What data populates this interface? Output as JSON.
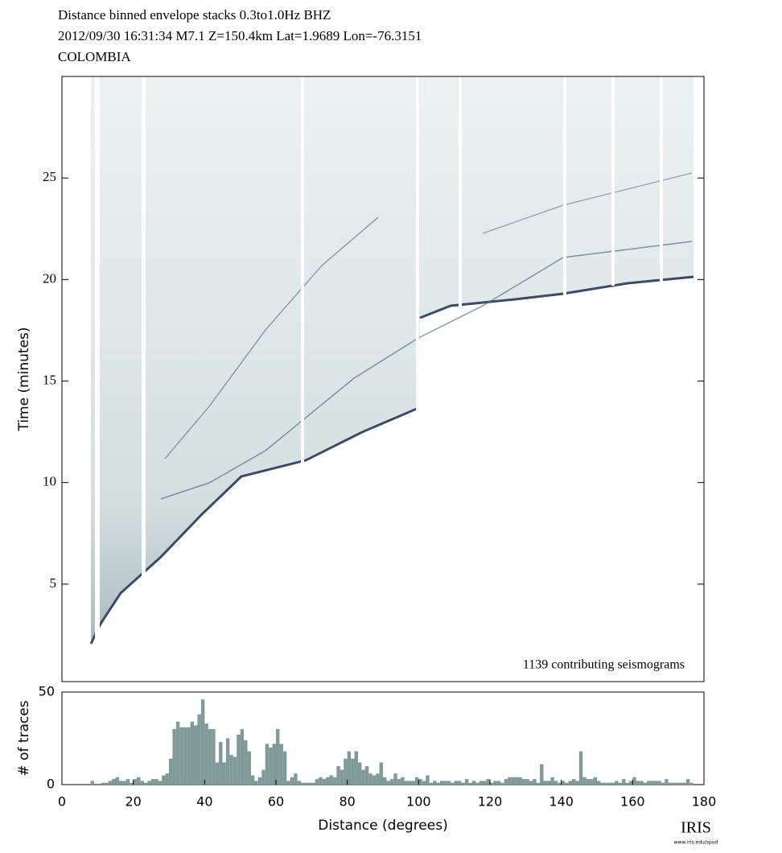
{
  "chart_data": [
    {
      "type": "image",
      "title_lines": [
        "Distance binned envelope stacks  0.3to1.0Hz  BHZ",
        "2012/09/30  16:31:34  M7.1  Z=150.4km Lat=1.9689 Lon=-76.3151",
        "COLOMBIA"
      ],
      "annotation": "1139 contributing seismograms",
      "ylabel": "Time (minutes)",
      "xlim": [
        0,
        180
      ],
      "ylim": [
        0.2,
        30
      ],
      "yticks": [
        5,
        10,
        15,
        20,
        25
      ]
    },
    {
      "type": "histogram",
      "xlabel": "Distance (degrees)",
      "ylabel": "# of traces",
      "color": "#7f9a97",
      "xlim": [
        0,
        180
      ],
      "ylim": [
        0,
        50
      ],
      "xticks": [
        0,
        20,
        40,
        60,
        80,
        100,
        120,
        140,
        160,
        180
      ],
      "yticks": [
        0,
        50
      ],
      "bins": [
        0,
        1,
        2,
        3,
        4,
        5,
        6,
        7,
        8,
        9,
        10,
        11,
        12,
        13,
        14,
        15,
        16,
        17,
        18,
        19,
        20,
        21,
        22,
        23,
        24,
        25,
        26,
        27,
        28,
        29,
        30,
        31,
        32,
        33,
        34,
        35,
        36,
        37,
        38,
        39,
        40,
        41,
        42,
        43,
        44,
        45,
        46,
        47,
        48,
        49,
        50,
        51,
        52,
        53,
        54,
        55,
        56,
        57,
        58,
        59,
        60,
        61,
        62,
        63,
        64,
        65,
        66,
        67,
        68,
        69,
        70,
        71,
        72,
        73,
        74,
        75,
        76,
        77,
        78,
        79,
        80,
        81,
        82,
        83,
        84,
        85,
        86,
        87,
        88,
        89,
        90,
        91,
        92,
        93,
        94,
        95,
        96,
        97,
        98,
        99,
        100,
        101,
        102,
        103,
        104,
        105,
        106,
        107,
        108,
        109,
        110,
        111,
        112,
        113,
        114,
        115,
        116,
        117,
        118,
        119,
        120,
        121,
        122,
        123,
        124,
        125,
        126,
        127,
        128,
        129,
        130,
        131,
        132,
        133,
        134,
        135,
        136,
        137,
        138,
        139,
        140,
        141,
        142,
        143,
        144,
        145,
        146,
        147,
        148,
        149,
        150,
        151,
        152,
        153,
        154,
        155,
        156,
        157,
        158,
        159,
        160,
        161,
        162,
        163,
        164,
        165,
        166,
        167,
        168,
        169,
        170,
        171,
        172,
        173,
        174,
        175,
        176,
        177,
        178,
        179,
        180
      ],
      "counts": [
        0,
        0,
        0,
        0,
        0,
        0,
        0,
        0,
        2,
        0,
        0,
        1,
        1,
        2,
        3,
        4,
        2,
        2,
        3,
        1,
        3,
        4,
        2,
        1,
        2,
        3,
        3,
        2,
        5,
        6,
        14,
        30,
        34,
        31,
        31,
        31,
        34,
        32,
        38,
        46,
        33,
        30,
        30,
        12,
        23,
        12,
        25,
        16,
        15,
        27,
        30,
        24,
        18,
        5,
        2,
        4,
        8,
        22,
        20,
        22,
        30,
        22,
        18,
        2,
        4,
        6,
        2,
        1,
        1,
        1,
        1,
        3,
        4,
        3,
        4,
        5,
        4,
        10,
        8,
        14,
        18,
        14,
        18,
        12,
        8,
        10,
        6,
        5,
        6,
        12,
        4,
        2,
        3,
        6,
        3,
        4,
        2,
        2,
        2,
        4,
        3,
        2,
        5,
        1,
        2,
        1,
        2,
        2,
        2,
        1,
        2,
        2,
        1,
        3,
        1,
        2,
        1,
        2,
        2,
        3,
        1,
        2,
        2,
        1,
        3,
        4,
        4,
        4,
        4,
        3,
        3,
        2,
        3,
        1,
        11,
        2,
        2,
        4,
        2,
        1,
        2,
        1,
        2,
        3,
        2,
        18,
        4,
        3,
        3,
        4,
        2,
        1,
        1,
        1,
        1,
        2,
        1,
        3,
        1,
        2,
        4,
        2,
        2,
        1,
        2,
        2,
        2,
        2,
        1,
        3,
        1,
        1,
        1,
        1,
        1,
        3,
        1,
        0,
        0,
        0
      ]
    },
    {
      "type": "logo",
      "text": "IRIS",
      "url": "www.iris.edu/spud"
    }
  ]
}
